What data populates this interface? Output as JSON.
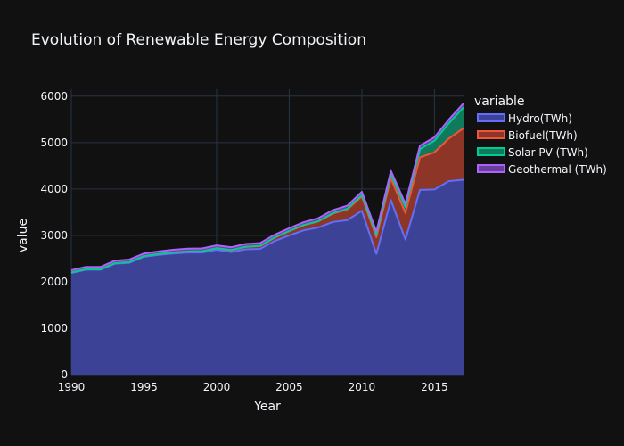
{
  "chart_data": {
    "type": "area",
    "title": "Evolution of Renewable Energy Composition",
    "xlabel": "Year",
    "ylabel": "value",
    "xlim": [
      1990,
      2017
    ],
    "ylim": [
      0,
      6150
    ],
    "x_ticks": [
      "1990",
      "1995",
      "2000",
      "2005",
      "2010",
      "2015"
    ],
    "y_ticks": [
      "0",
      "1000",
      "2000",
      "3000",
      "4000",
      "5000",
      "6000"
    ],
    "grid": true,
    "stacked": true,
    "legend_title": "variable",
    "legend_position": "right",
    "x": [
      1990,
      1991,
      1992,
      1993,
      1994,
      1995,
      1996,
      1997,
      1998,
      1999,
      2000,
      2001,
      2002,
      2003,
      2004,
      2005,
      2006,
      2007,
      2008,
      2009,
      2010,
      2011,
      2012,
      2013,
      2014,
      2015,
      2016,
      2017
    ],
    "series": [
      {
        "name": "Hydro(TWh)",
        "line_color": "#636efa",
        "fill_color": "#3c4397",
        "values": [
          2190,
          2260,
          2260,
          2390,
          2410,
          2540,
          2580,
          2610,
          2630,
          2630,
          2690,
          2640,
          2700,
          2710,
          2880,
          3000,
          3110,
          3170,
          3290,
          3330,
          3530,
          2600,
          3760,
          2910,
          3980,
          3990,
          4170,
          4200
        ]
      },
      {
        "name": "Biofuel(TWh)",
        "line_color": "#ef553b",
        "fill_color": "#8d3527",
        "values": [
          10,
          10,
          10,
          10,
          15,
          15,
          20,
          20,
          25,
          30,
          35,
          40,
          50,
          60,
          70,
          90,
          110,
          130,
          180,
          230,
          310,
          360,
          470,
          570,
          700,
          800,
          920,
          1110
        ]
      },
      {
        "name": "Solar PV (TWh)",
        "line_color": "#00cc96",
        "fill_color": "#0f7b5c",
        "values": [
          0,
          0,
          0,
          0,
          0,
          0,
          0,
          0,
          0,
          0,
          0,
          5,
          5,
          5,
          5,
          5,
          5,
          5,
          10,
          15,
          30,
          50,
          90,
          130,
          180,
          250,
          330,
          450
        ]
      },
      {
        "name": "Geothermal (TWh)",
        "line_color": "#ab63fa",
        "fill_color": "#6a3e9b",
        "values": [
          50,
          50,
          50,
          55,
          55,
          55,
          55,
          60,
          60,
          60,
          60,
          60,
          60,
          60,
          60,
          60,
          60,
          65,
          65,
          65,
          70,
          70,
          70,
          70,
          75,
          75,
          80,
          85
        ]
      }
    ]
  }
}
